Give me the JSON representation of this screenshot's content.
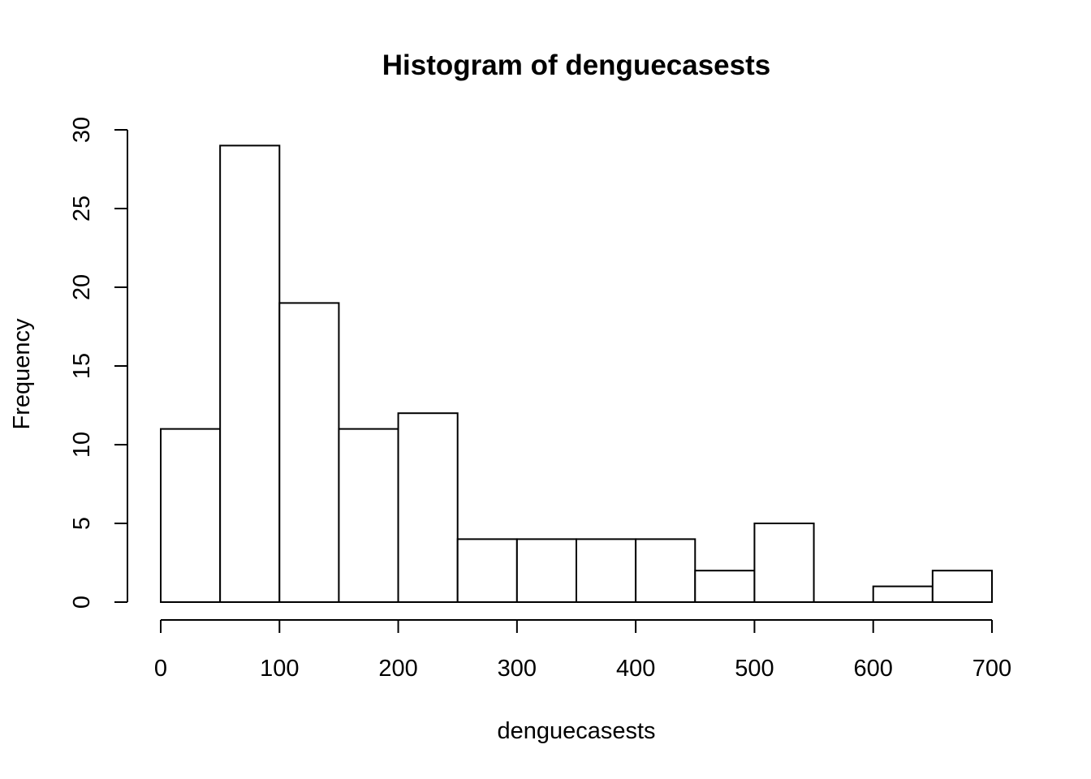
{
  "chart_data": {
    "type": "bar",
    "title": "Histogram of denguecasests",
    "xlabel": "denguecasests",
    "ylabel": "Frequency",
    "bin_edges": [
      0,
      50,
      100,
      150,
      200,
      250,
      300,
      350,
      400,
      450,
      500,
      550,
      600,
      650,
      700
    ],
    "values": [
      11,
      29,
      19,
      11,
      12,
      4,
      4,
      4,
      4,
      2,
      5,
      0,
      1,
      2
    ],
    "xlim": [
      0,
      700
    ],
    "ylim": [
      0,
      30
    ],
    "x_ticks": [
      0,
      100,
      200,
      300,
      400,
      500,
      600,
      700
    ],
    "y_ticks": [
      0,
      5,
      10,
      15,
      20,
      25,
      30
    ],
    "x_tick_labels": [
      "0",
      "100",
      "200",
      "300",
      "400",
      "500",
      "600",
      "700"
    ],
    "y_tick_labels": [
      "0",
      "5",
      "10",
      "15",
      "20",
      "25",
      "30"
    ],
    "grid": false,
    "legend": "none"
  }
}
